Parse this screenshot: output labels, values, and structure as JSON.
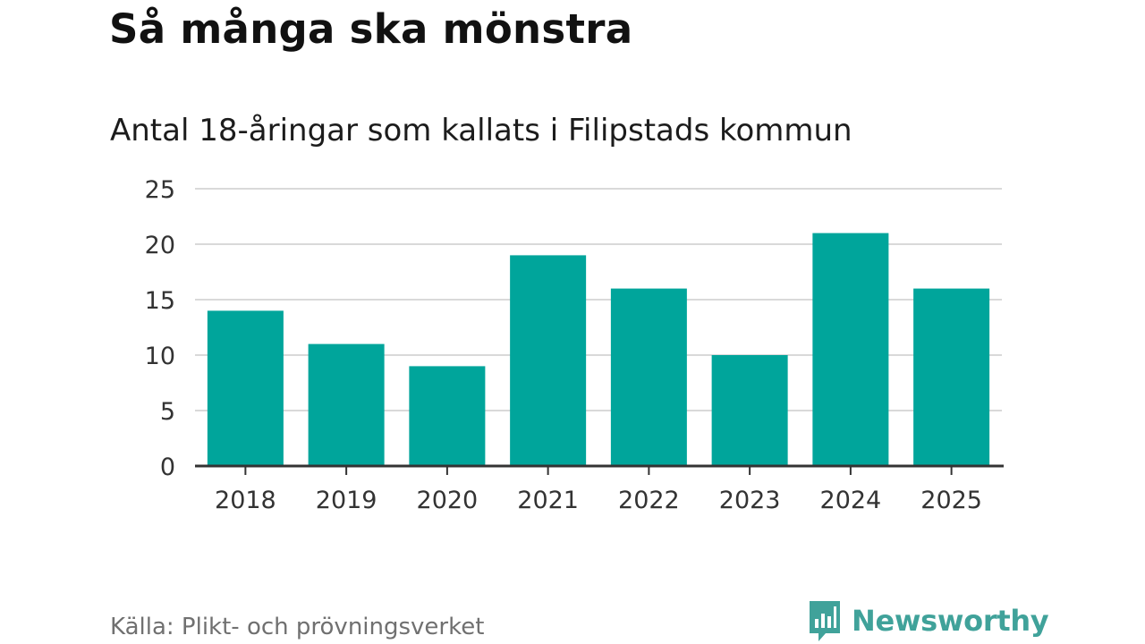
{
  "title": "Så många ska mönstra",
  "subtitle": "Antal 18-åringar som kallats i Filipstads kommun",
  "source": "Källa: Plikt- och prövningsverket",
  "brand": {
    "name": "Newsworthy",
    "icon": "newsworthy-logo-icon",
    "color": "#40a29a"
  },
  "chart_data": {
    "type": "bar",
    "categories": [
      "2018",
      "2019",
      "2020",
      "2021",
      "2022",
      "2023",
      "2024",
      "2025"
    ],
    "values": [
      14,
      11,
      9,
      19,
      16,
      10,
      21,
      16
    ],
    "ylim": [
      0,
      25
    ],
    "yticks": [
      "0",
      "5",
      "10",
      "15",
      "20",
      "25"
    ],
    "grid": true,
    "bar_color": "#00a59b",
    "grid_color": "#d9d9d9",
    "axis_color": "#333333"
  }
}
